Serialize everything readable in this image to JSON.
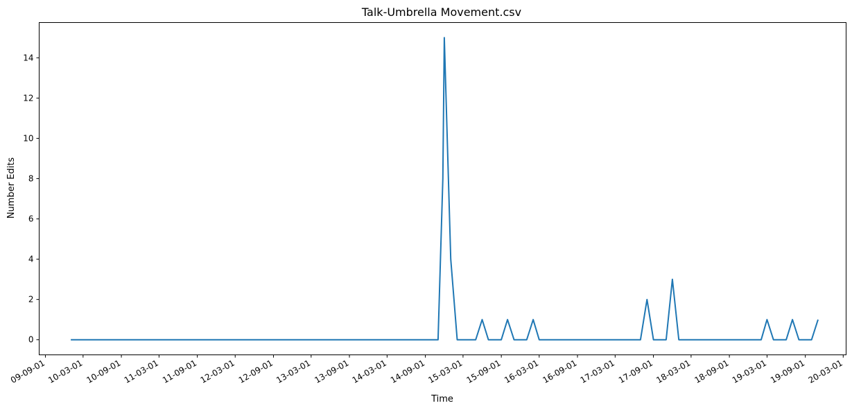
{
  "chart_data": {
    "type": "line",
    "title": "Talk-Umbrella Movement.csv",
    "xlabel": "Time",
    "ylabel": "Number Edits",
    "line_color": "#1f77b4",
    "grid": false,
    "legend": "none",
    "xlim": [
      "2009-08-02",
      "2020-03-15"
    ],
    "ylim": [
      -0.75,
      15.75
    ],
    "y_ticks": [
      0,
      2,
      4,
      6,
      8,
      10,
      12,
      14
    ],
    "x_ticks": [
      {
        "date": "2009-09-01",
        "label": "09-09-01"
      },
      {
        "date": "2010-03-01",
        "label": "10-03-01"
      },
      {
        "date": "2010-09-01",
        "label": "10-09-01"
      },
      {
        "date": "2011-03-01",
        "label": "11-03-01"
      },
      {
        "date": "2011-09-01",
        "label": "11-09-01"
      },
      {
        "date": "2012-03-01",
        "label": "12-03-01"
      },
      {
        "date": "2012-09-01",
        "label": "12-09-01"
      },
      {
        "date": "2013-03-01",
        "label": "13-03-01"
      },
      {
        "date": "2013-09-01",
        "label": "13-09-01"
      },
      {
        "date": "2014-03-01",
        "label": "14-03-01"
      },
      {
        "date": "2014-09-01",
        "label": "14-09-01"
      },
      {
        "date": "2015-03-01",
        "label": "15-03-01"
      },
      {
        "date": "2015-09-01",
        "label": "15-09-01"
      },
      {
        "date": "2016-03-01",
        "label": "16-03-01"
      },
      {
        "date": "2016-09-01",
        "label": "16-09-01"
      },
      {
        "date": "2017-03-01",
        "label": "17-03-01"
      },
      {
        "date": "2017-09-01",
        "label": "17-09-01"
      },
      {
        "date": "2018-03-01",
        "label": "18-03-01"
      },
      {
        "date": "2018-09-01",
        "label": "18-09-01"
      },
      {
        "date": "2019-03-01",
        "label": "19-03-01"
      },
      {
        "date": "2019-09-01",
        "label": "19-09-01"
      },
      {
        "date": "2020-03-01",
        "label": "20-03-01"
      }
    ],
    "series": [
      {
        "x": [
          "2010-01-01",
          "2014-11-01",
          "2014-11-24",
          "2014-12-01",
          "2015-01-01",
          "2015-02-01",
          "2015-05-01",
          "2015-06-01",
          "2015-07-01",
          "2015-09-01",
          "2015-10-01",
          "2015-11-01",
          "2016-01-01",
          "2016-02-01",
          "2016-03-01",
          "2016-05-01",
          "2017-07-01",
          "2017-08-01",
          "2017-09-01",
          "2017-11-01",
          "2017-12-01",
          "2018-01-01",
          "2019-02-01",
          "2019-03-01",
          "2019-04-01",
          "2019-06-01",
          "2019-07-01",
          "2019-08-01",
          "2019-10-01",
          "2019-11-01"
        ],
        "y": [
          0,
          0,
          8,
          15,
          4,
          0,
          0,
          1,
          0,
          0,
          1,
          0,
          0,
          1,
          0,
          0,
          0,
          2,
          0,
          0,
          3,
          0,
          0,
          1,
          0,
          0,
          1,
          0,
          0,
          1
        ]
      }
    ]
  }
}
